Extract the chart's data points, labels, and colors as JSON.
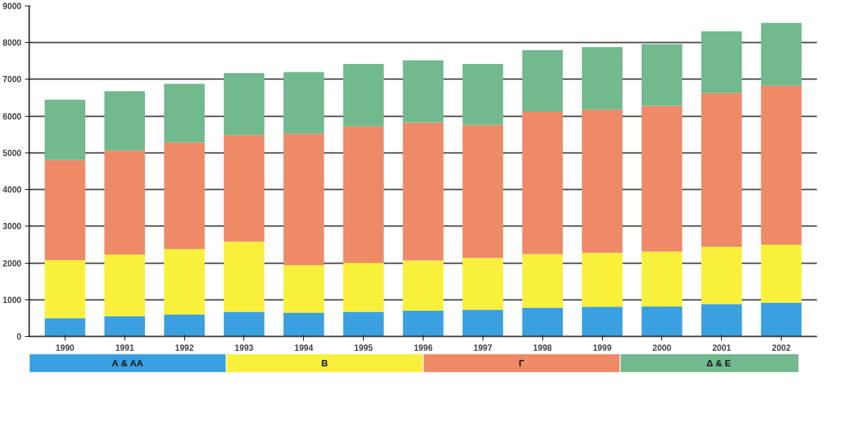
{
  "chart_data": {
    "type": "bar",
    "stacked": true,
    "categories": [
      "1990",
      "1991",
      "1992",
      "1993",
      "1994",
      "1995",
      "1996",
      "1997",
      "1998",
      "1999",
      "2000",
      "2001",
      "2002"
    ],
    "series": [
      {
        "name": "Α & ΑΑ",
        "color": "#3aa0e0",
        "values": [
          500,
          550,
          600,
          670,
          640,
          670,
          700,
          730,
          780,
          810,
          820,
          880,
          920
        ]
      },
      {
        "name": "Β",
        "color": "#f8f03a",
        "values": [
          1580,
          1680,
          1780,
          1910,
          1300,
          1330,
          1370,
          1410,
          1460,
          1470,
          1490,
          1560,
          1580
        ]
      },
      {
        "name": "Γ",
        "color": "#ee8a68",
        "values": [
          2720,
          2830,
          2900,
          2900,
          3580,
          3720,
          3750,
          3620,
          3880,
          3900,
          3970,
          4190,
          4330
        ]
      },
      {
        "name": "Δ & Ε",
        "color": "#72b98e",
        "values": [
          1650,
          1620,
          1600,
          1690,
          1680,
          1700,
          1700,
          1660,
          1680,
          1700,
          1680,
          1680,
          1710
        ]
      }
    ],
    "ylim": [
      0,
      9000
    ],
    "yticks": [
      0,
      1000,
      2000,
      3000,
      4000,
      5000,
      6000,
      7000,
      8000,
      9000
    ],
    "grid": "y",
    "legend": "bottom"
  }
}
